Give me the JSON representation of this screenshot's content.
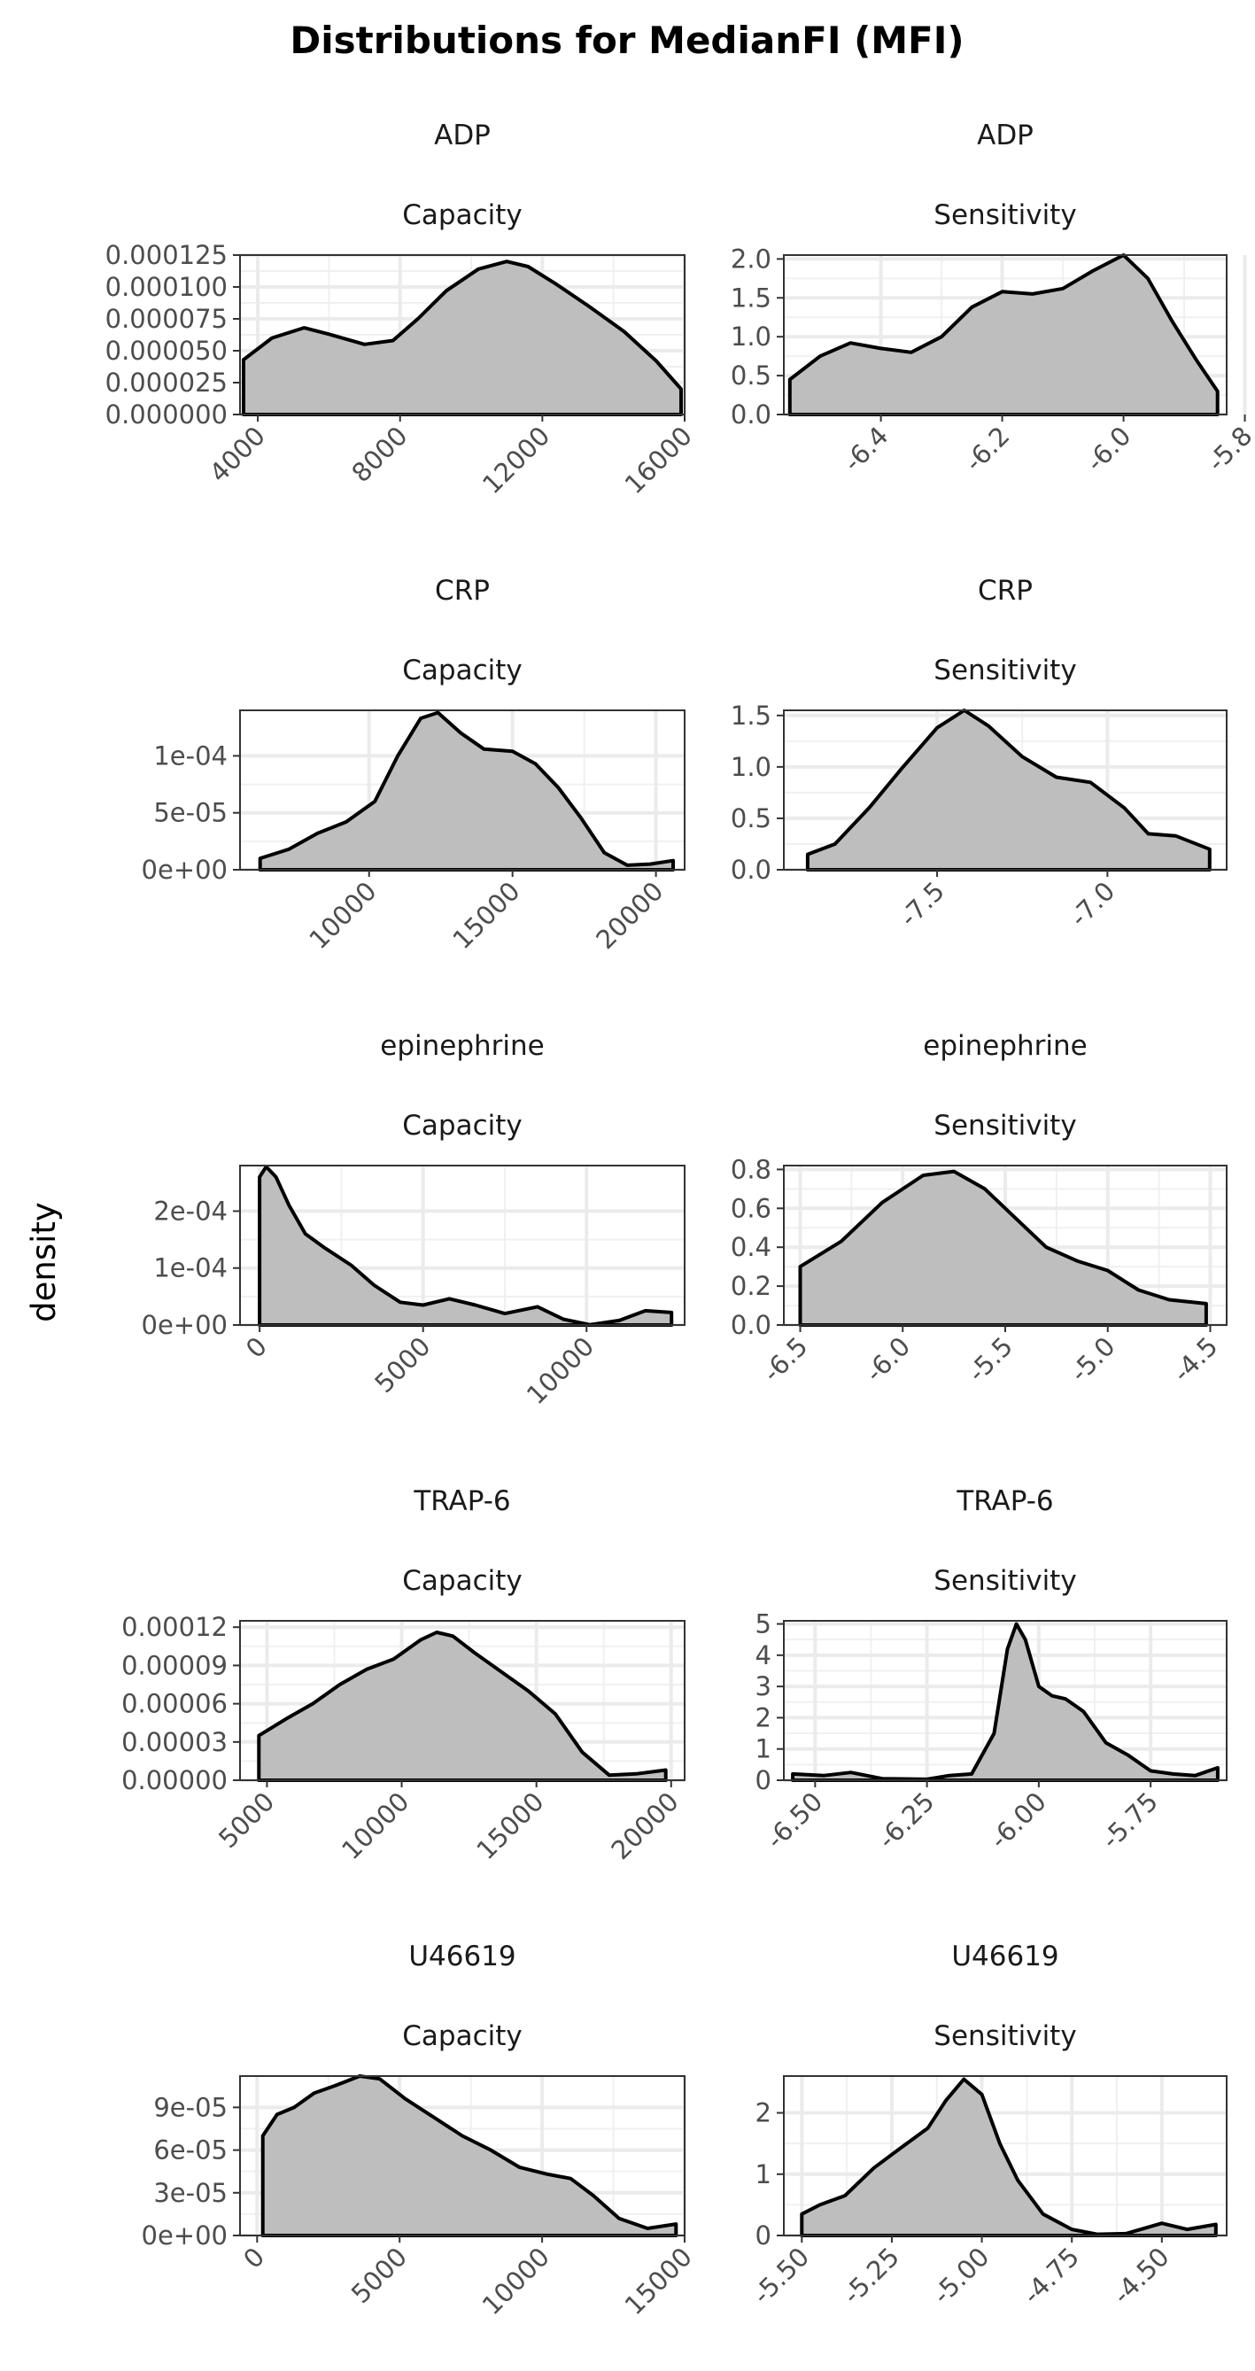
{
  "title": "Distributions for  MedianFI (MFI)",
  "y_axis_label": "density",
  "chart_data": [
    {
      "type": "area",
      "metric": "ADP",
      "measure": "Capacity",
      "xlim": [
        3500,
        16000
      ],
      "ylim": [
        0,
        0.000125
      ],
      "xticks": [
        4000,
        8000,
        12000,
        16000
      ],
      "xtick_labels": [
        "4000",
        "8000",
        "12000",
        "16000"
      ],
      "yticks": [
        0,
        2.5e-05,
        5e-05,
        7.5e-05,
        0.0001,
        0.000125
      ],
      "ytick_labels": [
        "0.000000",
        "0.000025",
        "0.000050",
        "0.000075",
        "0.000100",
        "0.000125"
      ],
      "x": [
        3600,
        4400,
        5300,
        6000,
        7000,
        7800,
        8500,
        9300,
        10200,
        11000,
        11600,
        12400,
        13300,
        14300,
        15200,
        15900
      ],
      "y": [
        4.3e-05,
        6e-05,
        6.8e-05,
        6.3e-05,
        5.5e-05,
        5.8e-05,
        7.5e-05,
        9.7e-05,
        0.000114,
        0.00012,
        0.000116,
        0.000102,
        8.5e-05,
        6.5e-05,
        4.2e-05,
        2e-05
      ]
    },
    {
      "type": "area",
      "metric": "ADP",
      "measure": "Sensitivity",
      "xlim": [
        -6.56,
        -5.83
      ],
      "ylim": [
        0,
        2.05
      ],
      "xticks": [
        -6.4,
        -6.2,
        -6.0,
        -5.8
      ],
      "xtick_labels": [
        "-6.4",
        "-6.2",
        "-6.0",
        "-5.8"
      ],
      "yticks": [
        0,
        0.5,
        1.0,
        1.5,
        2.0
      ],
      "ytick_labels": [
        "0.0",
        "0.5",
        "1.0",
        "1.5",
        "2.0"
      ],
      "x": [
        -6.55,
        -6.5,
        -6.45,
        -6.4,
        -6.35,
        -6.3,
        -6.25,
        -6.2,
        -6.15,
        -6.1,
        -6.05,
        -6.0,
        -5.96,
        -5.92,
        -5.88,
        -5.845
      ],
      "y": [
        0.45,
        0.75,
        0.92,
        0.85,
        0.8,
        1.0,
        1.38,
        1.58,
        1.55,
        1.62,
        1.85,
        2.05,
        1.75,
        1.2,
        0.7,
        0.3
      ]
    },
    {
      "type": "area",
      "metric": "CRP",
      "measure": "Capacity",
      "xlim": [
        5500,
        21000
      ],
      "ylim": [
        0,
        0.00014
      ],
      "xticks": [
        10000,
        15000,
        20000
      ],
      "xtick_labels": [
        "10000",
        "15000",
        "20000"
      ],
      "yticks": [
        0,
        5e-05,
        0.0001
      ],
      "ytick_labels": [
        "0e+00",
        "5e-05",
        "1e-04"
      ],
      "x": [
        6200,
        7200,
        8200,
        9200,
        10200,
        11000,
        11800,
        12400,
        13200,
        14000,
        15000,
        15800,
        16600,
        17400,
        18200,
        19000,
        19800,
        20600
      ],
      "y": [
        1e-05,
        1.8e-05,
        3.2e-05,
        4.2e-05,
        6e-05,
        0.0001,
        0.000133,
        0.000138,
        0.00012,
        0.000106,
        0.000104,
        9.3e-05,
        7.2e-05,
        4.5e-05,
        1.5e-05,
        4e-06,
        5e-06,
        8e-06
      ]
    },
    {
      "type": "area",
      "metric": "CRP",
      "measure": "Sensitivity",
      "xlim": [
        -7.95,
        -6.65
      ],
      "ylim": [
        0,
        1.55
      ],
      "xticks": [
        -7.5,
        -7.0
      ],
      "xtick_labels": [
        "-7.5",
        "-7.0"
      ],
      "yticks": [
        0,
        0.5,
        1.0,
        1.5
      ],
      "ytick_labels": [
        "0.0",
        "0.5",
        "1.0",
        "1.5"
      ],
      "x": [
        -7.88,
        -7.8,
        -7.7,
        -7.6,
        -7.5,
        -7.42,
        -7.35,
        -7.25,
        -7.15,
        -7.05,
        -6.95,
        -6.88,
        -6.8,
        -6.7
      ],
      "y": [
        0.15,
        0.25,
        0.6,
        1.0,
        1.38,
        1.55,
        1.4,
        1.1,
        0.9,
        0.85,
        0.6,
        0.35,
        0.33,
        0.2
      ]
    },
    {
      "type": "area",
      "metric": "epinephrine",
      "measure": "Capacity",
      "xlim": [
        -600,
        13000
      ],
      "ylim": [
        0,
        0.00028
      ],
      "xticks": [
        0,
        5000,
        10000
      ],
      "xtick_labels": [
        "0",
        "5000",
        "10000"
      ],
      "yticks": [
        0,
        0.0001,
        0.0002
      ],
      "ytick_labels": [
        "0e+00",
        "1e-04",
        "2e-04"
      ],
      "x": [
        0,
        200,
        500,
        900,
        1400,
        2000,
        2800,
        3500,
        4300,
        5000,
        5800,
        6600,
        7500,
        8500,
        9300,
        10100,
        11000,
        11800,
        12600
      ],
      "y": [
        0.00026,
        0.000278,
        0.00026,
        0.00021,
        0.00016,
        0.000135,
        0.000105,
        7e-05,
        4e-05,
        3.5e-05,
        4.6e-05,
        3.5e-05,
        2e-05,
        3.2e-05,
        1e-05,
        5e-07,
        8e-06,
        2.5e-05,
        2.2e-05
      ]
    },
    {
      "type": "area",
      "metric": "epinephrine",
      "measure": "Sensitivity",
      "xlim": [
        -6.58,
        -4.42
      ],
      "ylim": [
        0,
        0.82
      ],
      "xticks": [
        -6.5,
        -6.0,
        -5.5,
        -5.0,
        -4.5
      ],
      "xtick_labels": [
        "-6.5",
        "-6.0",
        "-5.5",
        "-5.0",
        "-4.5"
      ],
      "yticks": [
        0,
        0.2,
        0.4,
        0.6,
        0.8
      ],
      "ytick_labels": [
        "0.0",
        "0.2",
        "0.4",
        "0.6",
        "0.8"
      ],
      "x": [
        -6.5,
        -6.3,
        -6.1,
        -5.9,
        -5.75,
        -5.6,
        -5.45,
        -5.3,
        -5.15,
        -5.0,
        -4.85,
        -4.7,
        -4.52
      ],
      "y": [
        0.3,
        0.43,
        0.63,
        0.77,
        0.79,
        0.7,
        0.55,
        0.4,
        0.33,
        0.28,
        0.18,
        0.13,
        0.11
      ]
    },
    {
      "type": "area",
      "metric": "TRAP-6",
      "measure": "Capacity",
      "xlim": [
        4000,
        20500
      ],
      "ylim": [
        0,
        0.000125
      ],
      "xticks": [
        5000,
        10000,
        15000,
        20000
      ],
      "xtick_labels": [
        "5000",
        "10000",
        "15000",
        "20000"
      ],
      "yticks": [
        0,
        3e-05,
        6e-05,
        9e-05,
        0.00012
      ],
      "ytick_labels": [
        "0.00000",
        "0.00003",
        "0.00006",
        "0.00009",
        "0.00012"
      ],
      "x": [
        4700,
        5700,
        6700,
        7700,
        8700,
        9700,
        10700,
        11300,
        11900,
        12700,
        13700,
        14700,
        15700,
        16700,
        17700,
        18700,
        19800
      ],
      "y": [
        3.5e-05,
        4.8e-05,
        6e-05,
        7.5e-05,
        8.7e-05,
        9.5e-05,
        0.00011,
        0.000116,
        0.000113,
        0.0001,
        8.5e-05,
        7e-05,
        5.2e-05,
        2.2e-05,
        4e-06,
        5e-06,
        8e-06
      ]
    },
    {
      "type": "area",
      "metric": "TRAP-6",
      "measure": "Sensitivity",
      "xlim": [
        -6.57,
        -5.58
      ],
      "ylim": [
        0,
        5.1
      ],
      "xticks": [
        -6.5,
        -6.25,
        -6.0,
        -5.75
      ],
      "xtick_labels": [
        "-6.50",
        "-6.25",
        "-6.00",
        "-5.75"
      ],
      "yticks": [
        0,
        1,
        2,
        3,
        4,
        5
      ],
      "ytick_labels": [
        "0",
        "1",
        "2",
        "3",
        "4",
        "5"
      ],
      "x": [
        -6.55,
        -6.48,
        -6.42,
        -6.35,
        -6.25,
        -6.2,
        -6.15,
        -6.1,
        -6.07,
        -6.05,
        -6.03,
        -6.0,
        -5.97,
        -5.94,
        -5.9,
        -5.85,
        -5.8,
        -5.75,
        -5.7,
        -5.65,
        -5.6
      ],
      "y": [
        0.2,
        0.15,
        0.25,
        0.05,
        0.03,
        0.15,
        0.2,
        1.5,
        4.2,
        5.0,
        4.5,
        3.0,
        2.7,
        2.6,
        2.2,
        1.2,
        0.8,
        0.3,
        0.2,
        0.15,
        0.4
      ]
    },
    {
      "type": "area",
      "metric": "U46619",
      "measure": "Capacity",
      "xlim": [
        -600,
        15000
      ],
      "ylim": [
        0,
        0.000112
      ],
      "xticks": [
        0,
        5000,
        10000,
        15000
      ],
      "xtick_labels": [
        "0",
        "5000",
        "10000",
        "15000"
      ],
      "yticks": [
        0,
        3e-05,
        6e-05,
        9e-05
      ],
      "ytick_labels": [
        "0e+00",
        "3e-05",
        "6e-05",
        "9e-05"
      ],
      "x": [
        200,
        700,
        1300,
        2000,
        2700,
        3600,
        4300,
        5200,
        6200,
        7200,
        8200,
        9200,
        10200,
        11000,
        11800,
        12700,
        13700,
        14700
      ],
      "y": [
        7e-05,
        8.5e-05,
        9e-05,
        0.0001,
        0.000105,
        0.000112,
        0.00011,
        9.6e-05,
        8.3e-05,
        7e-05,
        6e-05,
        4.8e-05,
        4.3e-05,
        4e-05,
        2.8e-05,
        1.2e-05,
        5e-06,
        8e-06
      ]
    },
    {
      "type": "area",
      "metric": "U46619",
      "measure": "Sensitivity",
      "xlim": [
        -5.55,
        -4.32
      ],
      "ylim": [
        0,
        2.6
      ],
      "xticks": [
        -5.5,
        -5.25,
        -5.0,
        -4.75,
        -4.5
      ],
      "xtick_labels": [
        "-5.50",
        "-5.25",
        "-5.00",
        "-4.75",
        "-4.50"
      ],
      "yticks": [
        0,
        1,
        2
      ],
      "ytick_labels": [
        "0",
        "1",
        "2"
      ],
      "x": [
        -5.5,
        -5.45,
        -5.38,
        -5.3,
        -5.22,
        -5.15,
        -5.1,
        -5.05,
        -5.0,
        -4.95,
        -4.9,
        -4.83,
        -4.75,
        -4.68,
        -4.6,
        -4.5,
        -4.43,
        -4.35
      ],
      "y": [
        0.35,
        0.5,
        0.65,
        1.1,
        1.45,
        1.75,
        2.2,
        2.55,
        2.3,
        1.5,
        0.9,
        0.35,
        0.1,
        0.02,
        0.03,
        0.2,
        0.1,
        0.18
      ]
    }
  ]
}
